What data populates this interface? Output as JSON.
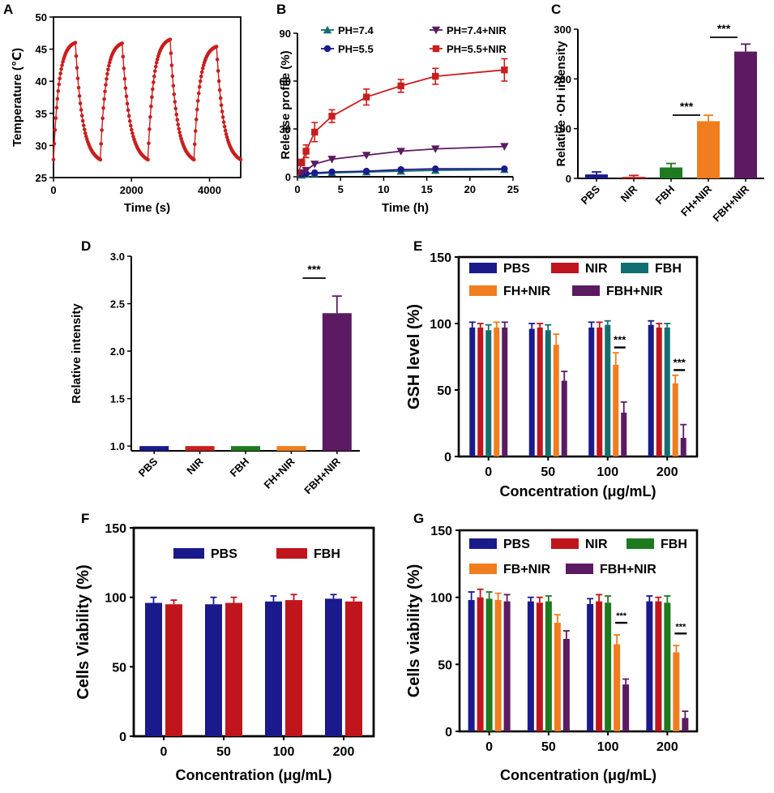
{
  "colors": {
    "red": "#c81e1e",
    "teal": "#136f6f",
    "navy": "#1a1a8c",
    "purple": "#5b1a62",
    "orange": "#f07d1e",
    "green": "#1e7a1e",
    "darkred": "#c0151c"
  },
  "chart_data": [
    {
      "panel": "A",
      "type": "line",
      "xlabel": "Time (s)",
      "ylabel": "Temperature (℃)",
      "xlim": [
        0,
        4800
      ],
      "ylim": [
        25,
        50
      ],
      "xticks": [
        "0",
        "2000",
        "4000"
      ],
      "yticks": [
        "25",
        "30",
        "35",
        "40",
        "45",
        "50"
      ],
      "cycles": [
        {
          "start": 0,
          "peak_t": 560,
          "end": 1200,
          "base": 27.8,
          "peak": 46.0
        },
        {
          "start": 1200,
          "peak_t": 1760,
          "end": 2420,
          "base": 27.8,
          "peak": 45.9
        },
        {
          "start": 2420,
          "peak_t": 2990,
          "end": 3600,
          "base": 27.8,
          "peak": 46.5
        },
        {
          "start": 3600,
          "peak_t": 4180,
          "end": 4800,
          "base": 27.8,
          "peak": 45.4
        }
      ]
    },
    {
      "panel": "B",
      "type": "line",
      "xlabel": "Time (h)",
      "ylabel": "Release profile (%)",
      "xlim": [
        0,
        25
      ],
      "ylim": [
        0,
        90
      ],
      "xticks": [
        "0",
        "5",
        "10",
        "15",
        "20",
        "25"
      ],
      "yticks": [
        "0",
        "30",
        "60",
        "90"
      ],
      "series": [
        {
          "name": "PH=7.4",
          "x": [
            0,
            0.5,
            1,
            2,
            4,
            8,
            12,
            16,
            24
          ],
          "y": [
            0,
            1,
            1.5,
            2,
            2.5,
            3,
            3.5,
            4,
            4.5
          ]
        },
        {
          "name": "PH=5.5",
          "x": [
            0,
            0.5,
            1,
            2,
            4,
            8,
            12,
            16,
            24
          ],
          "y": [
            0,
            1.5,
            2,
            2.5,
            3,
            3.5,
            4.5,
            5,
            5
          ]
        },
        {
          "name": "PH=7.4+NIR",
          "x": [
            0,
            0.5,
            1,
            2,
            4,
            8,
            12,
            16,
            24
          ],
          "y": [
            0,
            2.5,
            4,
            8,
            11,
            13.5,
            16,
            17.5,
            19
          ]
        },
        {
          "name": "PH=5.5+NIR",
          "x": [
            0,
            0.5,
            1,
            2,
            4,
            8,
            12,
            16,
            24
          ],
          "y": [
            0,
            9,
            16,
            28,
            38,
            50,
            57,
            63,
            67
          ],
          "err": [
            0,
            2,
            4,
            6,
            4,
            5,
            4,
            5,
            7
          ]
        }
      ]
    },
    {
      "panel": "C",
      "type": "bar",
      "ylabel": "Relative ·OH intensity",
      "ylim": [
        0,
        300
      ],
      "yticks": [
        "0",
        "100",
        "200",
        "300"
      ],
      "categories": [
        "PBS",
        "NIR",
        "FBH",
        "FH+NIR",
        "FBH+NIR"
      ],
      "values": [
        8,
        3,
        22,
        115,
        255
      ],
      "err": [
        5,
        3,
        8,
        12,
        15
      ],
      "significance": [
        {
          "label": "***",
          "from": 2,
          "to": 3
        },
        {
          "label": "***",
          "from": 3,
          "to": 4
        }
      ]
    },
    {
      "panel": "D",
      "type": "bar",
      "ylabel": "Relative intensity",
      "ylim": [
        0.95,
        3.0
      ],
      "yticks": [
        "1.0",
        "1.5",
        "2.0",
        "2.5",
        "3.0"
      ],
      "categories": [
        "PBS",
        "NIR",
        "FBH",
        "FH+NIR",
        "FBH+NIR"
      ],
      "values": [
        1.0,
        1.0,
        1.0,
        1.0,
        2.4
      ],
      "err": [
        0,
        0,
        0,
        0,
        0.18
      ],
      "significance": [
        {
          "label": "***",
          "from": 3,
          "to": 4
        }
      ]
    },
    {
      "panel": "E",
      "type": "bar",
      "xlabel": "Concentration (μg/mL)",
      "ylabel": "GSH level (%)",
      "ylim": [
        0,
        150
      ],
      "yticks": [
        "0",
        "50",
        "100",
        "150"
      ],
      "categories": [
        "0",
        "50",
        "100",
        "200"
      ],
      "series": [
        {
          "name": "PBS",
          "values": [
            97,
            96,
            97,
            99
          ],
          "err": [
            4,
            4,
            4,
            3
          ]
        },
        {
          "name": "NIR",
          "values": [
            97,
            97,
            97,
            97
          ],
          "err": [
            3,
            3,
            4,
            3
          ]
        },
        {
          "name": "FBH",
          "values": [
            95,
            95,
            99,
            97
          ],
          "err": [
            4,
            4,
            3,
            3
          ]
        },
        {
          "name": "FH+NIR",
          "values": [
            97,
            84,
            69,
            55
          ],
          "err": [
            4,
            8,
            9,
            6
          ]
        },
        {
          "name": "FBH+NIR",
          "values": [
            97,
            57,
            33,
            14
          ],
          "err": [
            4,
            7,
            8,
            10
          ]
        }
      ],
      "significance": [
        {
          "label": "***",
          "group": 2
        },
        {
          "label": "***",
          "group": 3
        }
      ]
    },
    {
      "panel": "F",
      "type": "bar",
      "xlabel": "Concentration (μg/mL)",
      "ylabel": "Cells Viability (%)",
      "ylim": [
        0,
        150
      ],
      "yticks": [
        "0",
        "50",
        "100",
        "150"
      ],
      "categories": [
        "0",
        "50",
        "100",
        "200"
      ],
      "series": [
        {
          "name": "PBS",
          "values": [
            96,
            95,
            97,
            99
          ],
          "err": [
            4,
            5,
            4,
            3
          ]
        },
        {
          "name": "FBH",
          "values": [
            95,
            96,
            98,
            97
          ],
          "err": [
            3,
            4,
            4,
            3
          ]
        }
      ]
    },
    {
      "panel": "G",
      "type": "bar",
      "xlabel": "Concentration (μg/mL)",
      "ylabel": "Cells viability (%)",
      "ylim": [
        0,
        150
      ],
      "yticks": [
        "0",
        "50",
        "100",
        "150"
      ],
      "categories": [
        "0",
        "50",
        "100",
        "200"
      ],
      "series": [
        {
          "name": "PBS",
          "values": [
            98,
            97,
            95,
            97
          ],
          "err": [
            6,
            3,
            4,
            4
          ]
        },
        {
          "name": "NIR",
          "values": [
            100,
            96,
            97,
            97
          ],
          "err": [
            6,
            4,
            5,
            3
          ]
        },
        {
          "name": "FBH",
          "values": [
            99,
            97,
            96,
            96
          ],
          "err": [
            5,
            4,
            5,
            5
          ]
        },
        {
          "name": "FB+NIR",
          "values": [
            98,
            81,
            65,
            59
          ],
          "err": [
            5,
            6,
            7,
            5
          ]
        },
        {
          "name": "FBH+NIR",
          "values": [
            97,
            69,
            35,
            10
          ],
          "err": [
            5,
            6,
            4,
            5
          ]
        }
      ],
      "significance": [
        {
          "label": "***",
          "group": 2
        },
        {
          "label": "***",
          "group": 3
        }
      ]
    }
  ]
}
